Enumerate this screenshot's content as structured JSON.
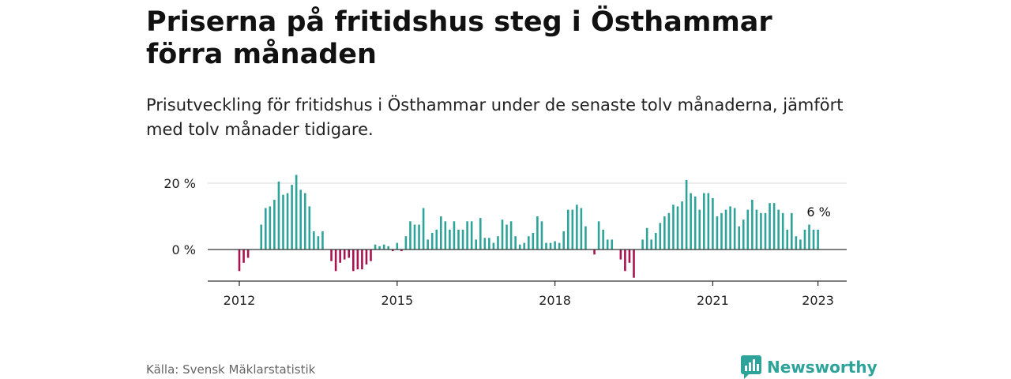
{
  "title": "Priserna på fritidshus steg i Östhammar förra månaden",
  "subtitle": "Prisutveckling för fritidshus i Östhammar under de senaste tolv månaderna, jämfört med tolv månader tidigare.",
  "source": "Källa: Svensk Mäklarstatistik",
  "brand": "Newsworthy",
  "colors": {
    "positive": "#2ea39a",
    "negative": "#a8134f",
    "brand": "#2ea39a"
  },
  "icons": {
    "logo": "bar-chart-bubble-icon"
  },
  "chart_data": {
    "type": "bar",
    "unit": "%",
    "yticks": [
      0,
      20
    ],
    "ytick_labels": [
      "0 %",
      "20 %"
    ],
    "ylim": [
      -9,
      22
    ],
    "xtick_labels": [
      "2012",
      "2015",
      "2018",
      "2021",
      "2023"
    ],
    "xtick_years": [
      2012,
      2015,
      2018,
      2021,
      2023
    ],
    "start": "2012-01",
    "end": "2023-01",
    "grid": "horizontal",
    "last_value_label": "6 %",
    "values": [
      -6.5,
      -4,
      -2.5,
      null,
      null,
      7.5,
      12.5,
      13,
      15,
      20.5,
      16.5,
      17,
      19.5,
      22.5,
      18,
      17,
      13,
      5.5,
      4,
      5.5,
      null,
      -3.5,
      -6.5,
      -4,
      -3,
      -2.5,
      -6.5,
      -6,
      -6,
      -4.5,
      -3.5,
      1.5,
      1,
      1.5,
      1,
      -0.5,
      2,
      -0.5,
      4,
      8.5,
      7.5,
      7.5,
      12.5,
      3,
      5,
      6,
      10,
      8.5,
      6,
      8.5,
      6,
      6,
      8.5,
      8.5,
      3,
      9.5,
      3.5,
      3.5,
      2,
      4,
      9,
      7.5,
      8.5,
      4,
      1.5,
      2,
      4,
      5,
      10,
      8.5,
      2,
      2,
      2.5,
      2,
      5.5,
      12,
      12,
      13.5,
      12.5,
      7,
      null,
      -1.5,
      8.5,
      6,
      3,
      3,
      null,
      -3,
      -6.5,
      -4,
      -8.5,
      null,
      3,
      6.5,
      3,
      5,
      8,
      10,
      11,
      13.5,
      13,
      14.5,
      21,
      17,
      16,
      12,
      17,
      17,
      15.5,
      10,
      11,
      12,
      13,
      12.5,
      7,
      9,
      12,
      15,
      12,
      11,
      11,
      14,
      14,
      12,
      11,
      6,
      11,
      4,
      3,
      6,
      7.5,
      6,
      6
    ]
  }
}
